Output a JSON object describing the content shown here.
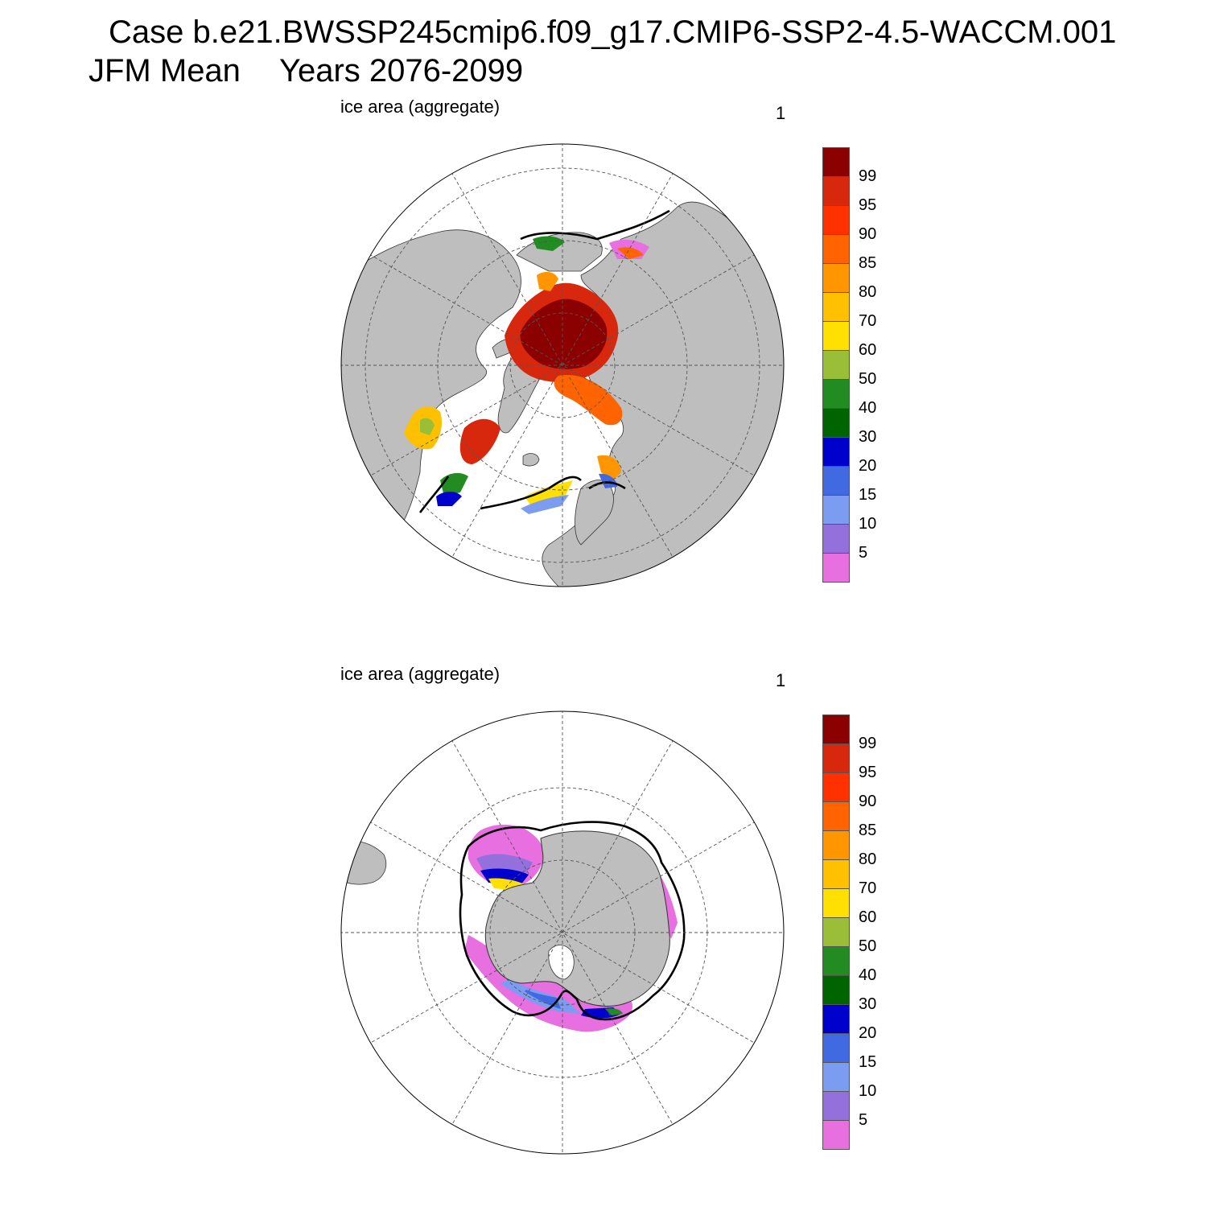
{
  "title": {
    "line1": "Case b.e21.BWSSP245cmip6.f09_g17.CMIP6-SSP2-4.5-WACCM.001",
    "season": "JFM Mean",
    "years": "Years 2076-2099"
  },
  "colors": {
    "land": "#bebebe",
    "ocean": "#ffffff",
    "contour": "#000000",
    "grid": "#555555"
  },
  "chart_data": [
    {
      "type": "map",
      "hemisphere": "north",
      "projection": "polar-stereographic",
      "label": "ice area  (aggregate)",
      "index": "1",
      "colorbar": {
        "labels": [
          "99",
          "95",
          "90",
          "85",
          "80",
          "70",
          "60",
          "50",
          "40",
          "30",
          "20",
          "15",
          "10",
          "5"
        ],
        "colors": [
          "#8b0000",
          "#d7280e",
          "#ff3100",
          "#ff6400",
          "#ff9600",
          "#ffc000",
          "#ffe000",
          "#9bbe38",
          "#228b22",
          "#006400",
          "#0000cd",
          "#4169e1",
          "#7b9cf0",
          "#9370db",
          "#e76fe0"
        ]
      }
    },
    {
      "type": "map",
      "hemisphere": "south",
      "projection": "polar-stereographic",
      "label": "ice area  (aggregate)",
      "index": "1",
      "colorbar": {
        "labels": [
          "99",
          "95",
          "90",
          "85",
          "80",
          "70",
          "60",
          "50",
          "40",
          "30",
          "20",
          "15",
          "10",
          "5"
        ],
        "colors": [
          "#8b0000",
          "#d7280e",
          "#ff3100",
          "#ff6400",
          "#ff9600",
          "#ffc000",
          "#ffe000",
          "#9bbe38",
          "#228b22",
          "#006400",
          "#0000cd",
          "#4169e1",
          "#7b9cf0",
          "#9370db",
          "#e76fe0"
        ]
      }
    }
  ]
}
